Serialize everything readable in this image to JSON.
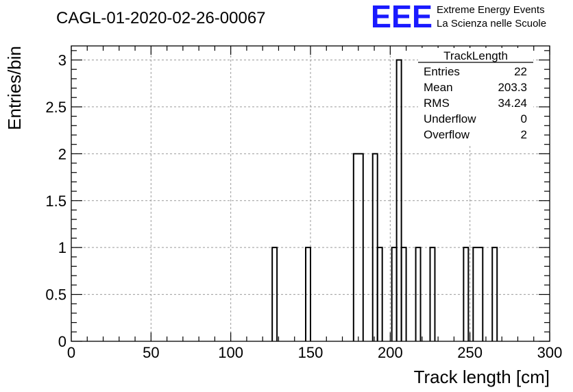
{
  "header": {
    "run_title": "CAGL-01-2020-02-26-00067",
    "logo_text": "EEE",
    "logo_line1": "Extreme Energy Events",
    "logo_line2": "La Scienza nelle Scuole",
    "logo_color": "#1a1aff"
  },
  "stats_box": {
    "title": "TrackLength",
    "rows": [
      {
        "label": "Entries",
        "value": "22"
      },
      {
        "label": "Mean",
        "value": "203.3"
      },
      {
        "label": "RMS",
        "value": "34.24"
      },
      {
        "label": "Underflow",
        "value": "0"
      },
      {
        "label": "Overflow",
        "value": "2"
      }
    ]
  },
  "chart_data": {
    "type": "histogram",
    "title": "CAGL-01-2020-02-26-00067",
    "xlabel": "Track length [cm]",
    "ylabel": "Entries/bin",
    "xlim": [
      0,
      300
    ],
    "ylim": [
      0,
      3.15
    ],
    "bin_width": 3,
    "x_ticks": [
      0,
      50,
      100,
      150,
      200,
      250,
      300
    ],
    "x_tick_labels": [
      "0",
      "50",
      "100",
      "150",
      "200",
      "250",
      "300"
    ],
    "y_ticks": [
      0,
      0.5,
      1,
      1.5,
      2,
      2.5,
      3
    ],
    "y_tick_labels": [
      "0",
      "0.5",
      "1",
      "1.5",
      "2",
      "2.5",
      "3"
    ],
    "grid": true,
    "line_color": "#000000",
    "bins": [
      {
        "x_low": 126,
        "x_high": 129,
        "count": 1
      },
      {
        "x_low": 147,
        "x_high": 150,
        "count": 1
      },
      {
        "x_low": 177,
        "x_high": 183,
        "count": 2
      },
      {
        "x_low": 189,
        "x_high": 192,
        "count": 2
      },
      {
        "x_low": 192,
        "x_high": 195,
        "count": 1
      },
      {
        "x_low": 201,
        "x_high": 204,
        "count": 1
      },
      {
        "x_low": 204,
        "x_high": 207,
        "count": 3
      },
      {
        "x_low": 207,
        "x_high": 210,
        "count": 1
      },
      {
        "x_low": 216,
        "x_high": 219,
        "count": 1
      },
      {
        "x_low": 225,
        "x_high": 228,
        "count": 1
      },
      {
        "x_low": 246,
        "x_high": 249,
        "count": 1
      },
      {
        "x_low": 252,
        "x_high": 258,
        "count": 1
      },
      {
        "x_low": 264,
        "x_high": 267,
        "count": 1
      }
    ]
  }
}
